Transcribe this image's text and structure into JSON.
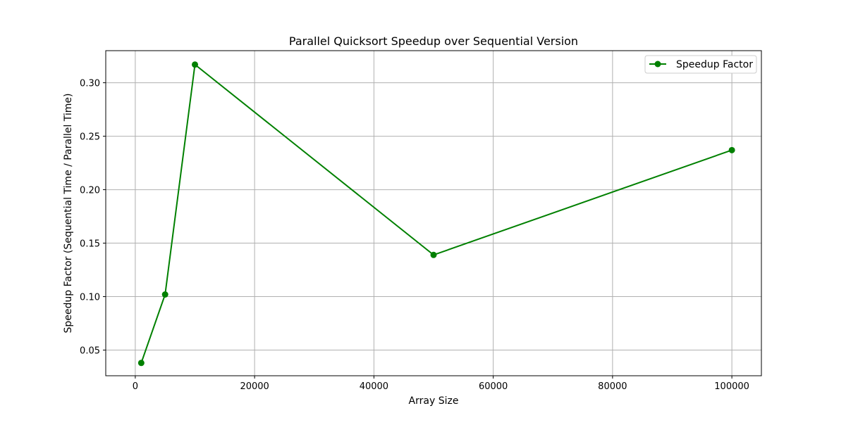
{
  "chart_data": {
    "type": "line",
    "title": "Parallel Quicksort Speedup over Sequential Version",
    "xlabel": "Array Size",
    "ylabel": "Speedup Factor (Sequential Time / Parallel Time)",
    "xlim": [
      -4950,
      104950
    ],
    "ylim": [
      0.026,
      0.33
    ],
    "x_ticks": [
      0,
      20000,
      40000,
      60000,
      80000,
      100000
    ],
    "x_tick_labels": [
      "0",
      "20000",
      "40000",
      "60000",
      "80000",
      "100000"
    ],
    "y_ticks": [
      0.05,
      0.1,
      0.15,
      0.2,
      0.25,
      0.3
    ],
    "y_tick_labels": [
      "0.05",
      "0.10",
      "0.15",
      "0.20",
      "0.25",
      "0.30"
    ],
    "grid": true,
    "legend_position": "top-right",
    "color": "#008000",
    "series": [
      {
        "name": "Speedup Factor",
        "marker": "circle",
        "x": [
          1000,
          5000,
          10000,
          50000,
          100000
        ],
        "y": [
          0.038,
          0.102,
          0.317,
          0.139,
          0.237
        ]
      }
    ]
  }
}
